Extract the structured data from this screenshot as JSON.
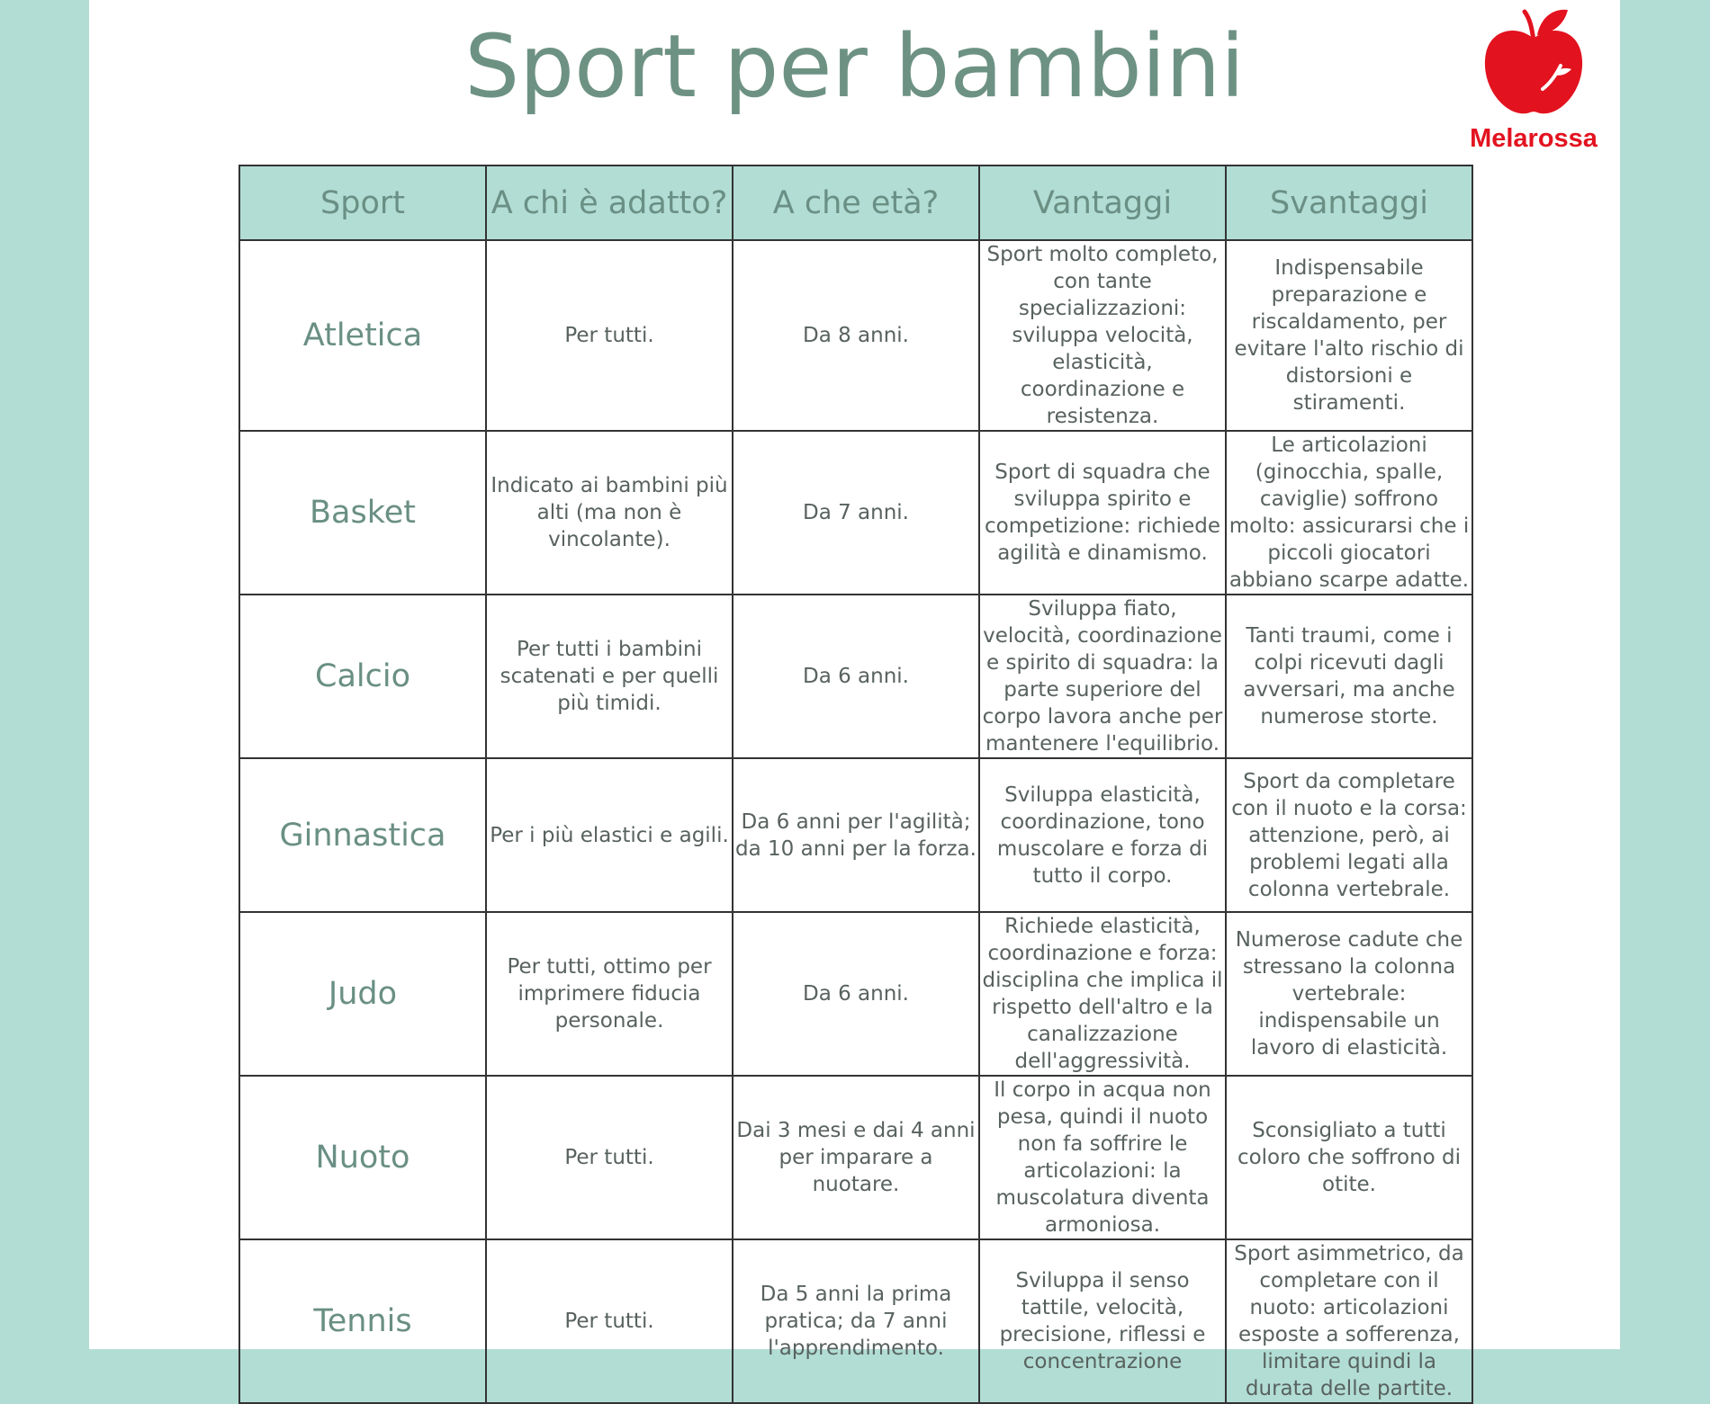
{
  "title": "Sport per bambini",
  "brand": {
    "name": "Melarossa",
    "logo_icon": "red-apple-icon",
    "color": "#e3121f"
  },
  "colors": {
    "background": "#b2ddd4",
    "header_fill": "#b2ddd4",
    "title_text": "#6d9283"
  },
  "table": {
    "headers": [
      "Sport",
      "A chi è adatto?",
      "A che età?",
      "Vantaggi",
      "Svantaggi"
    ],
    "rows": [
      {
        "sport": "Atletica",
        "adatto": "Per tutti.",
        "eta": "Da 8 anni.",
        "vantaggi": "Sport molto completo, con tante specializzazioni: sviluppa velocità, elasticità, coordinazione e resistenza.",
        "svantaggi": "Indispensabile preparazione e riscaldamento, per evitare l'alto rischio di distorsioni e stiramenti."
      },
      {
        "sport": "Basket",
        "adatto": "Indicato ai bambini più alti (ma non è vincolante).",
        "eta": "Da 7 anni.",
        "vantaggi": "Sport di squadra che sviluppa spirito e competizione: richiede agilità e dinamismo.",
        "svantaggi": "Le articolazioni (ginocchia, spalle, caviglie) soffrono molto: assicurarsi che i piccoli giocatori abbiano scarpe adatte."
      },
      {
        "sport": "Calcio",
        "adatto": "Per tutti i bambini scatenati e per quelli più timidi.",
        "eta": "Da 6 anni.",
        "vantaggi": "Sviluppa fiato, velocità, coordinazione e spirito di squadra: la parte superiore del corpo lavora anche per mantenere l'equilibrio.",
        "svantaggi": "Tanti traumi, come i colpi ricevuti dagli avversari, ma anche numerose storte."
      },
      {
        "sport": "Ginnastica",
        "adatto": "Per i più elastici e agili.",
        "eta": "Da 6 anni per l'agilità; da 10 anni per la forza.",
        "vantaggi": "Sviluppa elasticità, coordinazione, tono muscolare e forza di tutto il corpo.",
        "svantaggi": "Sport da completare con il nuoto e la corsa: attenzione, però, ai problemi legati alla colonna vertebrale."
      },
      {
        "sport": "Judo",
        "adatto": "Per tutti, ottimo per imprimere fiducia personale.",
        "eta": "Da 6 anni.",
        "vantaggi": "Richiede elasticità, coordinazione e forza: disciplina che implica il rispetto dell'altro e la canalizzazione dell'aggressività.",
        "svantaggi": "Numerose cadute che stressano la colonna vertebrale: indispensabile un lavoro di elasticità."
      },
      {
        "sport": "Nuoto",
        "adatto": "Per tutti.",
        "eta": "Dai 3 mesi e dai 4 anni per imparare a nuotare.",
        "vantaggi": "Il corpo in acqua non pesa, quindi il nuoto non fa soffrire le articolazioni: la muscolatura diventa armoniosa.",
        "svantaggi": "Sconsigliato a tutti coloro che soffrono di otite."
      },
      {
        "sport": "Tennis",
        "adatto": "Per tutti.",
        "eta": "Da 5 anni la prima pratica; da 7 anni l'apprendimento.",
        "vantaggi": "Sviluppa il senso tattile, velocità, precisione, riflessi e concentrazione",
        "svantaggi": "Sport asimmetrico, da completare con il nuoto: articolazioni esposte a sofferenza, limitare quindi la durata delle partite."
      }
    ]
  }
}
